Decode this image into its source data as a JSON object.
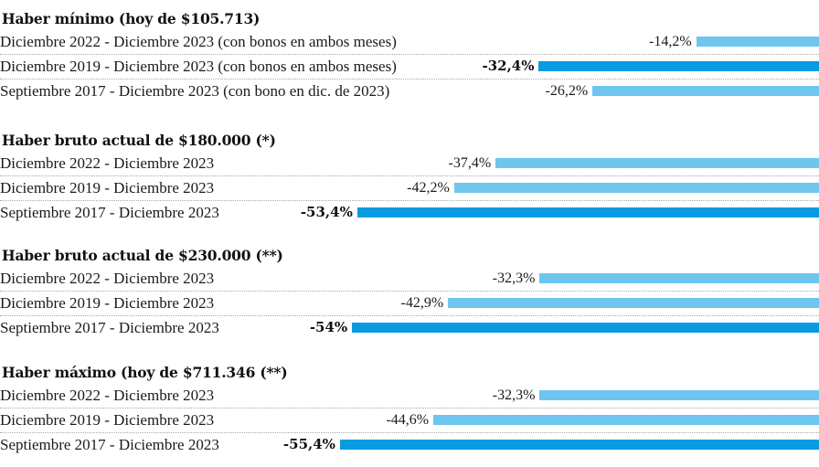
{
  "colors": {
    "bar_light": "#6ec6ef",
    "bar_dark": "#0a9ae0"
  },
  "chart_data": {
    "type": "bar",
    "orientation": "horizontal",
    "unit": "%",
    "xlim": [
      -56,
      0
    ],
    "grid": false,
    "legend": "none",
    "groups": [
      {
        "title": "Haber mínimo (hoy de $105.713)",
        "bars": [
          {
            "label": "Diciembre 2022 - Diciembre 2023 (con bonos en ambos meses)",
            "value": -14.2,
            "value_label": "-14,2%",
            "highlight": false
          },
          {
            "label": "Diciembre 2019 - Diciembre 2023 (con bonos en ambos meses)",
            "value": -32.4,
            "value_label": "-32,4%",
            "highlight": true
          },
          {
            "label": "Septiembre 2017 - Diciembre 2023 (con bono en dic. de 2023)",
            "value": -26.2,
            "value_label": "-26,2%",
            "highlight": false
          }
        ]
      },
      {
        "title": "Haber bruto actual de $180.000 (*)",
        "bars": [
          {
            "label": "Diciembre 2022 - Diciembre 2023",
            "value": -37.4,
            "value_label": "-37,4%",
            "highlight": false
          },
          {
            "label": "Diciembre 2019 - Diciembre 2023",
            "value": -42.2,
            "value_label": "-42,2%",
            "highlight": false
          },
          {
            "label": "Septiembre 2017 - Diciembre 2023",
            "value": -53.4,
            "value_label": "-53,4%",
            "highlight": true
          }
        ]
      },
      {
        "title": "Haber bruto actual de $230.000 (**)",
        "bars": [
          {
            "label": "Diciembre 2022 - Diciembre 2023",
            "value": -32.3,
            "value_label": "-32,3%",
            "highlight": false
          },
          {
            "label": "Diciembre 2019 - Diciembre 2023",
            "value": -42.9,
            "value_label": "-42,9%",
            "highlight": false
          },
          {
            "label": "Septiembre 2017 - Diciembre 2023",
            "value": -54.0,
            "value_label": "-54%",
            "highlight": true
          }
        ]
      },
      {
        "title": "Haber máximo (hoy de $711.346 (**)",
        "bars": [
          {
            "label": "Diciembre 2022 - Diciembre 2023",
            "value": -32.3,
            "value_label": "-32,3%",
            "highlight": false
          },
          {
            "label": "Diciembre 2019 - Diciembre 2023",
            "value": -44.6,
            "value_label": "-44,6%",
            "highlight": false
          },
          {
            "label": "Septiembre 2017 - Diciembre 2023",
            "value": -55.4,
            "value_label": "-55,4%",
            "highlight": true
          }
        ]
      }
    ]
  }
}
